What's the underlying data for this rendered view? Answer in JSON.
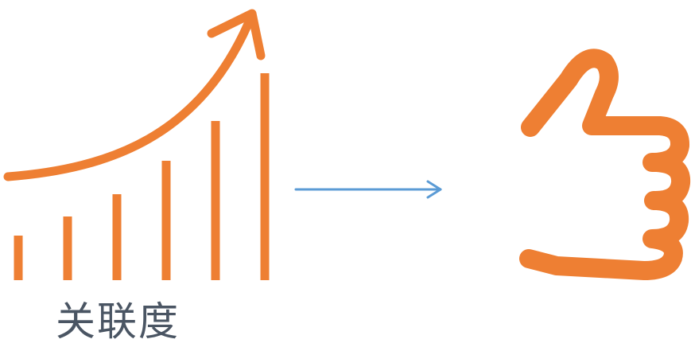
{
  "caption": "关联度",
  "colors": {
    "accent": "#EE7F33",
    "arrow": "#5B9BD5",
    "caption": "#4A5563"
  },
  "icons": {
    "growth": "growth-chart-icon",
    "connector": "right-arrow-icon",
    "approval": "thumbs-up-icon"
  }
}
